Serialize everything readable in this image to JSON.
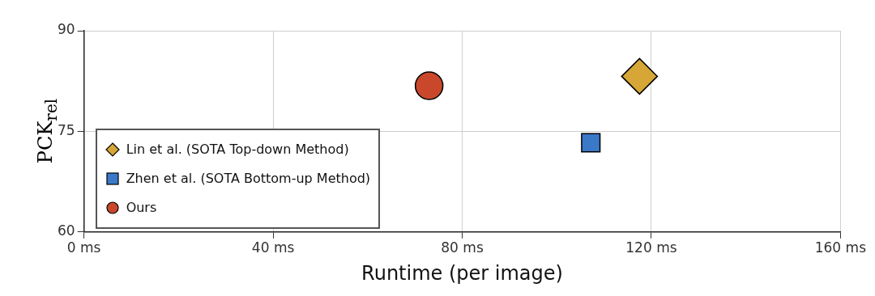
{
  "chart_data": {
    "type": "scatter",
    "xlabel": "Runtime (per image)",
    "ylabel": "PCK$_{rel}$",
    "xlim": [
      0,
      160
    ],
    "xticks": [
      {
        "value": 0,
        "label": "0 ms"
      },
      {
        "value": 40,
        "label": "40 ms"
      },
      {
        "value": 80,
        "label": "80 ms"
      },
      {
        "value": 120,
        "label": "120 ms"
      },
      {
        "value": 160,
        "label": "160 ms"
      }
    ],
    "ylim": [
      60,
      90
    ],
    "yticks": [
      60,
      75,
      90
    ],
    "grid": true,
    "legend": "bottom left",
    "series": [
      {
        "name": "Lin et al. (SOTA Top-down Method)",
        "color": "#d6a736",
        "marker": "diamond",
        "x": [
          117.5
        ],
        "values": [
          83.2
        ]
      },
      {
        "name": "Zhen et al. (SOTA Bottom-up Method)",
        "color": "#3b78c8",
        "marker": "square",
        "x": [
          107.2
        ],
        "values": [
          73.3
        ]
      },
      {
        "name": "Ours",
        "color": "#c9482b",
        "marker": "circle",
        "x": [
          73
        ],
        "values": [
          81.8
        ]
      }
    ]
  }
}
